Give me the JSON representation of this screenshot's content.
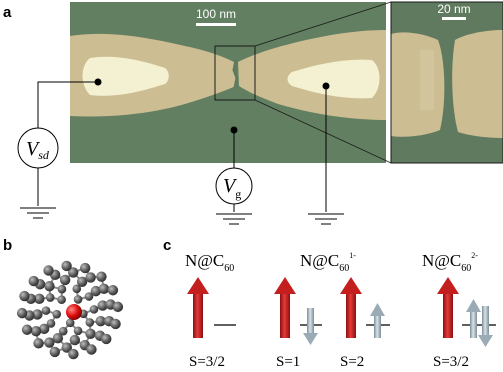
{
  "panel_a": {
    "label": "a",
    "scalebar_main": "100 nm",
    "scalebar_zoom": "20 nm",
    "vsd_symbol": "V",
    "vsd_subscript": "sd",
    "vg_symbol": "V",
    "vg_subscript": "g"
  },
  "panel_b": {
    "label": "b"
  },
  "panel_c": {
    "label": "c",
    "species": [
      {
        "formula": "N@C",
        "sub": "60",
        "sup": "",
        "spin_labels": [
          "S=3/2"
        ]
      },
      {
        "formula": "N@C",
        "sub": "60",
        "sup": "1-",
        "spin_labels": [
          "S=1",
          "S=2"
        ]
      },
      {
        "formula": "N@C",
        "sub": "60",
        "sup": "2-",
        "spin_labels": [
          "S=3/2"
        ]
      }
    ]
  },
  "colors": {
    "substrate_green": "#5f7a5e",
    "electrode_tan": "#cdbd93",
    "electrode_tip": "#f4f1d2",
    "big_arrow_red": "#d42525",
    "small_arrow_gray": "#a9b9c3",
    "carbon_gray": "#5b5b5b",
    "nitrogen_red": "#e01010"
  }
}
